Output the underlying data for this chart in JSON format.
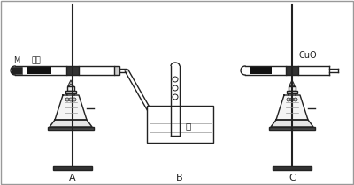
{
  "bg_color": "#ffffff",
  "line_color": "#222222",
  "dark_fill": "#222222",
  "gray_fill": "#888888",
  "light_fill": "#dddddd",
  "label_A": "A",
  "label_B": "B",
  "label_C": "C",
  "label_M": "M",
  "label_iron": "铁粉",
  "label_water": "水",
  "label_CuO": "CuO",
  "fig_width": 4.0,
  "fig_height": 2.1,
  "dpi": 100
}
